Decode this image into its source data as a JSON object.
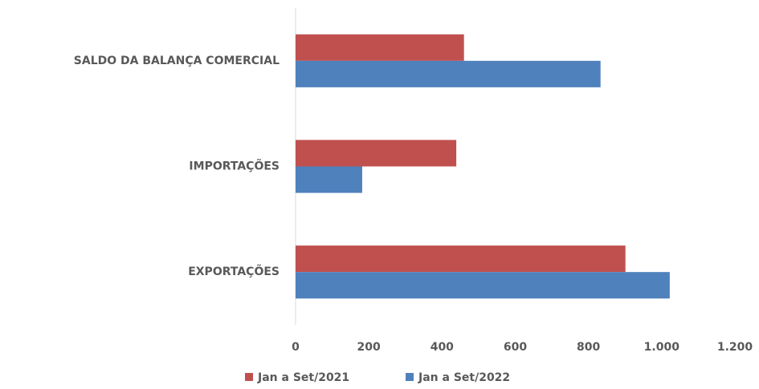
{
  "chart_data": {
    "type": "hbar",
    "categories": [
      "EXPORTAÇÕES",
      "IMPORTAÇÕES",
      "SALDO DA BALANÇA COMERCIAL"
    ],
    "series": [
      {
        "name": "Jan a Set/2021",
        "color": "#c0504d",
        "values": [
          901,
          439,
          460
        ]
      },
      {
        "name": "Jan a Set/2022",
        "color": "#4f81bd",
        "values": [
          1022,
          182,
          833
        ]
      }
    ],
    "xlim": [
      0,
      1200
    ],
    "xticks": [
      0,
      200,
      400,
      600,
      800,
      {
        "value": 1000,
        "label": "1.000"
      },
      {
        "value": 1200,
        "label": "1.200"
      }
    ],
    "legend": "bottom"
  }
}
